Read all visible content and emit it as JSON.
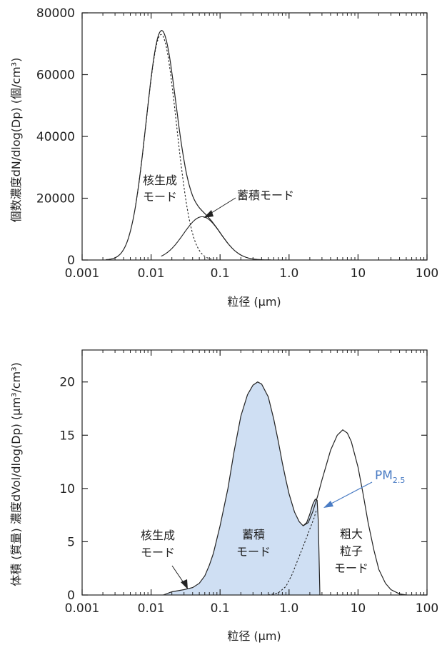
{
  "chart_data": [
    {
      "type": "line",
      "title": "",
      "xlabel": "粒径 (µm)",
      "ylabel": "個数濃度dN/dlog(Dp) (個/cm³)",
      "xscale": "log",
      "xlim": [
        0.001,
        100
      ],
      "ylim": [
        0,
        80000
      ],
      "x_ticks": [
        "0.001",
        "0.01",
        "0.1",
        "1.0",
        "10",
        "100"
      ],
      "y_ticks": [
        "0",
        "20000",
        "40000",
        "60000",
        "80000"
      ],
      "grid": false,
      "series": [
        {
          "name": "",
          "style": "solid",
          "peak_x": 0.014,
          "peak_y": 75500
        },
        {
          "name": "",
          "style": "dotted",
          "peak_x": 0.014,
          "peak_y": 73000
        },
        {
          "name": "",
          "style": "solid",
          "peak_x": 0.055,
          "peak_y": 14000
        }
      ],
      "annotations": [
        {
          "line1": "核生成",
          "line2": "モード"
        },
        {
          "line1": "蓄積モード"
        }
      ]
    },
    {
      "type": "area",
      "title": "",
      "xlabel": "粒径 (µm)",
      "ylabel": "体積 (質量) 濃度dVol/dlog(Dp) (µm³/cm³)",
      "xscale": "log",
      "xlim": [
        0.001,
        100
      ],
      "ylim": [
        0,
        23
      ],
      "x_ticks": [
        "0.001",
        "0.01",
        "0.1",
        "1.0",
        "10",
        "100"
      ],
      "y_ticks": [
        "0",
        "5",
        "10",
        "15",
        "20"
      ],
      "grid": false,
      "series": [
        {
          "name": "",
          "style": "solid",
          "peak_x": 0.35,
          "peak_y": 20,
          "second_peak_x": 6,
          "second_peak_y": 15.5,
          "valley_x": 1.6,
          "valley_y": 6.5
        },
        {
          "name": "PM2.5",
          "style": "filled",
          "cutoff_x": 2.5,
          "cutoff_peak_y": 9
        }
      ],
      "annotations": [
        {
          "line1": "核生成",
          "line2": "モード"
        },
        {
          "line1": "蓄積",
          "line2": "モード"
        },
        {
          "line1": "粗大",
          "line2": "粒子",
          "line3": "モード"
        },
        {
          "label": "PM",
          "sub": "2.5",
          "color": "#4a7cc4"
        }
      ]
    }
  ]
}
